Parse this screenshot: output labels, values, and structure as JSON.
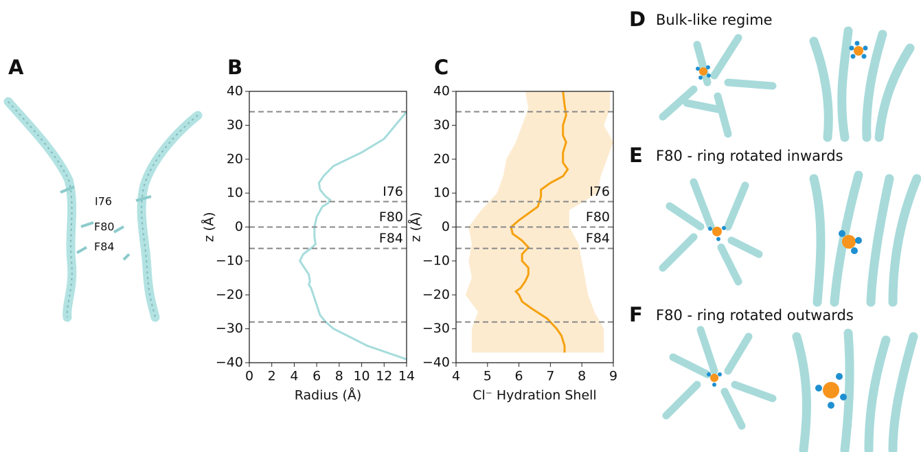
{
  "panel_labels": [
    "A",
    "B",
    "C",
    "D",
    "E",
    "F"
  ],
  "panel_titles": [
    "Bulk-like regime",
    "F80 - ring rotated inwards",
    "F80 - ring rotated outwards"
  ],
  "residue_labels": [
    "I76",
    "F80",
    "F84"
  ],
  "chart_data": [
    {
      "type": "line",
      "xlabel": "Radius (Å)",
      "ylabel": "z (Å)",
      "color": "#a6dcdc",
      "x": [
        14,
        10.5,
        7.5,
        6.8,
        6.3,
        5.9,
        5.7,
        5.5,
        5.3,
        5.4,
        5.3,
        4.9,
        4.5,
        4.8,
        5.6,
        5.9,
        5.8,
        5.8,
        6.0,
        6.5,
        7.0,
        7.2,
        6.8,
        6.3,
        6.2,
        6.6,
        7.5,
        10,
        12,
        13,
        14
      ],
      "y": [
        -39,
        -35,
        -30,
        -28,
        -26,
        -22,
        -20,
        -18,
        -17,
        -16,
        -14,
        -12,
        -10,
        -8,
        -6,
        -5,
        -3,
        0,
        3,
        6,
        7,
        8,
        9,
        11,
        13,
        15,
        18,
        22,
        26,
        30,
        34
      ],
      "xlim": [
        0,
        14
      ],
      "xticks": [
        0,
        2,
        4,
        6,
        8,
        10,
        12,
        14
      ],
      "ylim": [
        -40,
        40
      ],
      "yticks": [
        {
          "value": -40,
          "label": "−40"
        },
        {
          "value": -30,
          "label": "−30"
        },
        {
          "value": -20,
          "label": "−20"
        },
        {
          "value": -10,
          "label": "−10"
        },
        0,
        10,
        20,
        30,
        40
      ],
      "hlines": [
        34,
        7.5,
        0,
        -6.3,
        -28
      ],
      "hline_labels": [
        null,
        "I76",
        "F80",
        "F84",
        null
      ]
    },
    {
      "type": "line",
      "xlabel": "Cl⁻ Hydration Shell",
      "ylabel": "z (Å)",
      "color": "#f5a10e",
      "x": [
        7.45,
        7.45,
        7.35,
        7.2,
        6.9,
        6.4,
        6.1,
        6.0,
        5.9,
        6.05,
        6.2,
        6.3,
        6.3,
        6.1,
        6.1,
        6.3,
        6.1,
        5.8,
        5.75,
        6.0,
        6.3,
        6.6,
        6.7,
        6.7,
        7.0,
        7.4,
        7.55,
        7.4,
        7.4,
        7.5,
        7.4,
        7.4,
        7.5,
        7.45,
        7.4
      ],
      "y": [
        -37,
        -35,
        -32,
        -30,
        -27,
        -24,
        -22,
        -20,
        -19,
        -18,
        -16,
        -14,
        -12,
        -10,
        -8,
        -6,
        -4,
        -2,
        0,
        2,
        4,
        6,
        9,
        11,
        13,
        15,
        17,
        19,
        22,
        25,
        27,
        30,
        33,
        36,
        40
      ],
      "band": {
        "color": "#fdebd0",
        "y": [
          -37,
          -30,
          -25,
          -20,
          -15,
          -10,
          -5,
          0,
          5,
          10,
          15,
          20,
          25,
          30,
          35,
          40
        ],
        "lower": [
          4.5,
          4.5,
          4.7,
          4.3,
          4.5,
          4.4,
          4.5,
          4.4,
          4.8,
          5.3,
          5.5,
          5.6,
          5.9,
          6.1,
          6.3,
          6.2
        ],
        "upper": [
          8.7,
          8.7,
          8.4,
          8.2,
          8.1,
          8.0,
          7.9,
          7.6,
          7.6,
          8.5,
          8.6,
          8.8,
          9.0,
          8.7,
          8.9,
          8.9
        ]
      },
      "xlim": [
        4,
        9
      ],
      "xticks": [
        4,
        5,
        6,
        7,
        8,
        9
      ],
      "ylim": [
        -40,
        40
      ],
      "yticks": [
        {
          "value": -40,
          "label": "−40"
        },
        {
          "value": -30,
          "label": "−30"
        },
        {
          "value": -20,
          "label": "−20"
        },
        {
          "value": -10,
          "label": "−10"
        },
        0,
        10,
        20,
        30,
        40
      ],
      "hlines": [
        34,
        7.5,
        0,
        -6.3,
        -28
      ],
      "hline_labels": [
        null,
        "I76",
        "F80",
        "F84",
        null
      ]
    }
  ]
}
